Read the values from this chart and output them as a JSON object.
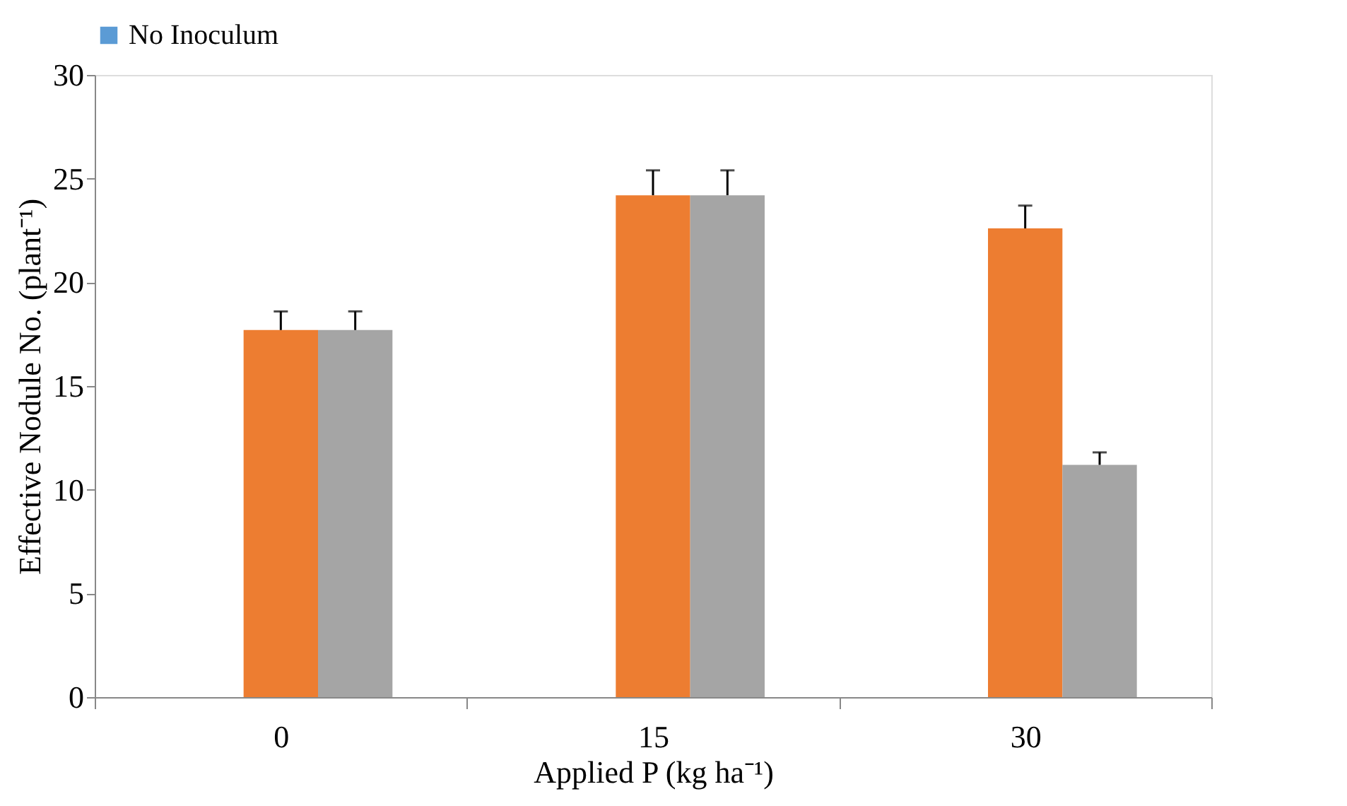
{
  "chart_data": {
    "type": "bar",
    "xlabel": "Applied P (kg ha⁻¹)",
    "ylabel": "Effective Nodule No. (plant⁻¹)",
    "categories": [
      "0",
      "15",
      "30"
    ],
    "series": [
      {
        "name": "No Inoculum",
        "color": "#5b9bd5",
        "values": [
          0,
          0,
          0
        ]
      },
      {
        "color": "#ed7d31",
        "values": [
          17.7,
          24.2,
          22.6
        ],
        "errors": [
          [
            17.7,
            18.6
          ],
          [
            24.2,
            25.4
          ],
          [
            22.6,
            23.7
          ]
        ]
      },
      {
        "color": "#a5a5a5",
        "values": [
          17.7,
          24.2,
          11.2
        ],
        "errors": [
          [
            17.7,
            18.6
          ],
          [
            24.2,
            25.4
          ],
          [
            11.2,
            11.8
          ]
        ]
      }
    ],
    "ylim": [
      0,
      30
    ],
    "yticks": [
      0,
      5,
      10,
      15,
      20,
      25,
      30
    ],
    "grid": false,
    "legend": "top"
  }
}
